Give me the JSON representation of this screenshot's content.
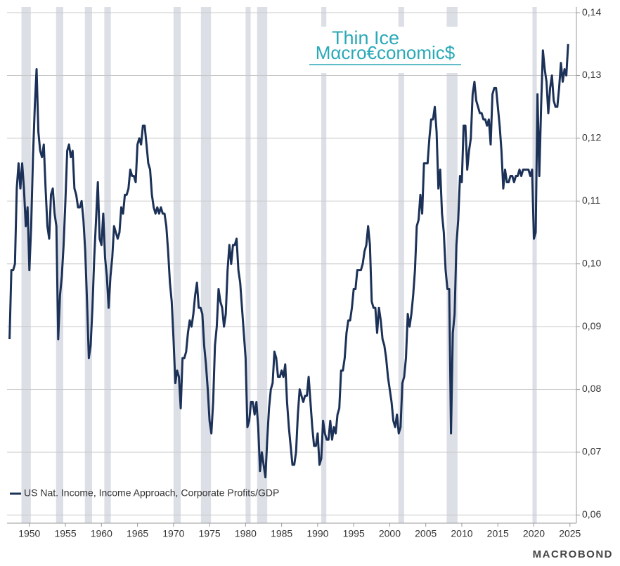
{
  "chart_data": {
    "type": "line",
    "logo": [
      "Thin Ice",
      "Mαcro€conomic$"
    ],
    "source": "MACROBOND",
    "grid": true,
    "legend": "bottom-left",
    "xlim": [
      1946.9,
      2025.9
    ],
    "xticks": [
      1950,
      1955,
      1960,
      1965,
      1970,
      1975,
      1980,
      1985,
      1990,
      1995,
      2000,
      2005,
      2010,
      2015,
      2020,
      2025
    ],
    "ylim": [
      0.0587,
      0.1409
    ],
    "yticks": [
      {
        "value": 0.06,
        "label": "0,06"
      },
      {
        "value": 0.07,
        "label": "0,07"
      },
      {
        "value": 0.08,
        "label": "0,08"
      },
      {
        "value": 0.09,
        "label": "0,09"
      },
      {
        "value": 0.1,
        "label": "0,10"
      },
      {
        "value": 0.11,
        "label": "0,11"
      },
      {
        "value": 0.12,
        "label": "0,12"
      },
      {
        "value": 0.13,
        "label": "0,13"
      },
      {
        "value": 0.14,
        "label": "0,14"
      }
    ],
    "recession_color": "#dcdfe6",
    "recessions": [
      [
        1948.9,
        1950.2
      ],
      [
        1953.7,
        1954.7
      ],
      [
        1957.7,
        1958.7
      ],
      [
        1960.4,
        1961.3
      ],
      [
        1970.0,
        1971.0
      ],
      [
        1973.8,
        1975.2
      ],
      [
        1980.0,
        1980.7
      ],
      [
        1981.6,
        1983.0
      ],
      [
        1990.5,
        1991.2
      ],
      [
        2001.2,
        2002.0
      ],
      [
        2007.9,
        2009.4
      ],
      [
        2019.8,
        2020.4
      ]
    ],
    "x": [
      1947.25,
      1947.5,
      1947.75,
      1948,
      1948.25,
      1948.5,
      1948.75,
      1949,
      1949.25,
      1949.5,
      1949.75,
      1950,
      1950.25,
      1950.5,
      1950.75,
      1951,
      1951.25,
      1951.5,
      1951.75,
      1952,
      1952.25,
      1952.5,
      1952.75,
      1953,
      1953.25,
      1953.5,
      1953.75,
      1954,
      1954.25,
      1954.5,
      1954.75,
      1955,
      1955.25,
      1955.5,
      1955.75,
      1956,
      1956.25,
      1956.5,
      1956.75,
      1957,
      1957.25,
      1957.5,
      1957.75,
      1958,
      1958.25,
      1958.5,
      1958.75,
      1959,
      1959.25,
      1959.5,
      1959.75,
      1960,
      1960.25,
      1960.5,
      1960.75,
      1961,
      1961.25,
      1961.5,
      1961.75,
      1962,
      1962.25,
      1962.5,
      1962.75,
      1963,
      1963.25,
      1963.5,
      1963.75,
      1964,
      1964.25,
      1964.5,
      1964.75,
      1965,
      1965.25,
      1965.5,
      1965.75,
      1966,
      1966.25,
      1966.5,
      1966.75,
      1967,
      1967.25,
      1967.5,
      1967.75,
      1968,
      1968.25,
      1968.5,
      1968.75,
      1969,
      1969.25,
      1969.5,
      1969.75,
      1970,
      1970.25,
      1970.5,
      1970.75,
      1971,
      1971.25,
      1971.5,
      1971.75,
      1972,
      1972.25,
      1972.5,
      1972.75,
      1973,
      1973.25,
      1973.5,
      1973.75,
      1974,
      1974.25,
      1974.5,
      1974.75,
      1975,
      1975.25,
      1975.5,
      1975.75,
      1976,
      1976.25,
      1976.5,
      1976.75,
      1977,
      1977.25,
      1977.5,
      1977.75,
      1978,
      1978.25,
      1978.5,
      1978.75,
      1979,
      1979.25,
      1979.5,
      1979.75,
      1980,
      1980.25,
      1980.5,
      1980.75,
      1981,
      1981.25,
      1981.5,
      1981.75,
      1982,
      1982.25,
      1982.5,
      1982.75,
      1983,
      1983.25,
      1983.5,
      1983.75,
      1984,
      1984.25,
      1984.5,
      1984.75,
      1985,
      1985.25,
      1985.5,
      1985.75,
      1986,
      1986.25,
      1986.5,
      1986.75,
      1987,
      1987.25,
      1987.5,
      1987.75,
      1988,
      1988.25,
      1988.5,
      1988.75,
      1989,
      1989.25,
      1989.5,
      1989.75,
      1990,
      1990.25,
      1990.5,
      1990.75,
      1991,
      1991.25,
      1991.5,
      1991.75,
      1992,
      1992.25,
      1992.5,
      1992.75,
      1993,
      1993.25,
      1993.5,
      1993.75,
      1994,
      1994.25,
      1994.5,
      1994.75,
      1995,
      1995.25,
      1995.5,
      1995.75,
      1996,
      1996.25,
      1996.5,
      1996.75,
      1997,
      1997.25,
      1997.5,
      1997.75,
      1998,
      1998.25,
      1998.5,
      1998.75,
      1999,
      1999.25,
      1999.5,
      1999.75,
      2000,
      2000.25,
      2000.5,
      2000.75,
      2001,
      2001.25,
      2001.5,
      2001.75,
      2002,
      2002.25,
      2002.5,
      2002.75,
      2003,
      2003.25,
      2003.5,
      2003.75,
      2004,
      2004.25,
      2004.5,
      2004.75,
      2005,
      2005.25,
      2005.5,
      2005.75,
      2006,
      2006.25,
      2006.5,
      2006.75,
      2007,
      2007.25,
      2007.5,
      2007.75,
      2008,
      2008.25,
      2008.5,
      2008.75,
      2009,
      2009.25,
      2009.5,
      2009.75,
      2010,
      2010.25,
      2010.5,
      2010.75,
      2011,
      2011.25,
      2011.5,
      2011.75,
      2012,
      2012.25,
      2012.5,
      2012.75,
      2013,
      2013.25,
      2013.5,
      2013.75,
      2014,
      2014.25,
      2014.5,
      2014.75,
      2015,
      2015.25,
      2015.5,
      2015.75,
      2016,
      2016.25,
      2016.5,
      2016.75,
      2017,
      2017.25,
      2017.5,
      2017.75,
      2018,
      2018.25,
      2018.5,
      2018.75,
      2019,
      2019.25,
      2019.5,
      2019.75,
      2020,
      2020.25,
      2020.5,
      2020.75,
      2021,
      2021.25,
      2021.5,
      2021.75,
      2022,
      2022.25,
      2022.5,
      2022.75,
      2023,
      2023.25,
      2023.5,
      2023.75,
      2024,
      2024.25,
      2024.5,
      2024.75
    ],
    "series": [
      {
        "name": "US Nat. Income, Income Approach, Corporate Profits/GDP",
        "color": "#1c3157",
        "values": [
          0.088,
          0.099,
          0.099,
          0.1,
          0.112,
          0.116,
          0.112,
          0.116,
          0.112,
          0.106,
          0.109,
          0.099,
          0.106,
          0.117,
          0.125,
          0.131,
          0.121,
          0.118,
          0.117,
          0.119,
          0.112,
          0.106,
          0.104,
          0.111,
          0.112,
          0.108,
          0.106,
          0.088,
          0.095,
          0.098,
          0.103,
          0.11,
          0.118,
          0.119,
          0.117,
          0.118,
          0.112,
          0.111,
          0.109,
          0.109,
          0.11,
          0.107,
          0.102,
          0.094,
          0.085,
          0.087,
          0.093,
          0.101,
          0.107,
          0.113,
          0.104,
          0.103,
          0.108,
          0.101,
          0.098,
          0.093,
          0.098,
          0.101,
          0.106,
          0.105,
          0.104,
          0.105,
          0.109,
          0.108,
          0.111,
          0.111,
          0.112,
          0.115,
          0.114,
          0.114,
          0.113,
          0.119,
          0.12,
          0.119,
          0.122,
          0.122,
          0.119,
          0.116,
          0.115,
          0.111,
          0.109,
          0.108,
          0.109,
          0.108,
          0.109,
          0.108,
          0.108,
          0.106,
          0.102,
          0.097,
          0.094,
          0.088,
          0.081,
          0.083,
          0.082,
          0.077,
          0.085,
          0.085,
          0.086,
          0.089,
          0.091,
          0.09,
          0.092,
          0.095,
          0.097,
          0.093,
          0.093,
          0.092,
          0.087,
          0.084,
          0.08,
          0.075,
          0.073,
          0.078,
          0.087,
          0.09,
          0.096,
          0.094,
          0.093,
          0.09,
          0.092,
          0.099,
          0.103,
          0.1,
          0.103,
          0.103,
          0.104,
          0.099,
          0.097,
          0.093,
          0.089,
          0.085,
          0.074,
          0.075,
          0.078,
          0.078,
          0.076,
          0.078,
          0.074,
          0.067,
          0.07,
          0.068,
          0.066,
          0.072,
          0.077,
          0.08,
          0.081,
          0.086,
          0.085,
          0.082,
          0.082,
          0.083,
          0.082,
          0.084,
          0.078,
          0.074,
          0.071,
          0.068,
          0.068,
          0.07,
          0.076,
          0.08,
          0.079,
          0.078,
          0.079,
          0.079,
          0.082,
          0.078,
          0.074,
          0.071,
          0.071,
          0.073,
          0.068,
          0.069,
          0.075,
          0.073,
          0.072,
          0.072,
          0.075,
          0.072,
          0.074,
          0.073,
          0.076,
          0.077,
          0.083,
          0.083,
          0.085,
          0.089,
          0.091,
          0.091,
          0.093,
          0.096,
          0.096,
          0.099,
          0.099,
          0.099,
          0.1,
          0.102,
          0.103,
          0.106,
          0.103,
          0.094,
          0.093,
          0.093,
          0.089,
          0.093,
          0.091,
          0.088,
          0.087,
          0.085,
          0.082,
          0.08,
          0.078,
          0.075,
          0.074,
          0.076,
          0.073,
          0.074,
          0.081,
          0.082,
          0.085,
          0.092,
          0.09,
          0.092,
          0.095,
          0.099,
          0.106,
          0.107,
          0.111,
          0.108,
          0.116,
          0.116,
          0.116,
          0.12,
          0.123,
          0.123,
          0.125,
          0.121,
          0.112,
          0.115,
          0.108,
          0.105,
          0.099,
          0.096,
          0.096,
          0.073,
          0.089,
          0.092,
          0.103,
          0.107,
          0.114,
          0.113,
          0.122,
          0.122,
          0.115,
          0.118,
          0.12,
          0.127,
          0.129,
          0.126,
          0.125,
          0.124,
          0.124,
          0.123,
          0.123,
          0.122,
          0.123,
          0.119,
          0.127,
          0.128,
          0.128,
          0.125,
          0.122,
          0.118,
          0.112,
          0.115,
          0.113,
          0.113,
          0.114,
          0.114,
          0.113,
          0.114,
          0.114,
          0.115,
          0.114,
          0.115,
          0.115,
          0.115,
          0.115,
          0.114,
          0.115,
          0.104,
          0.105,
          0.127,
          0.114,
          0.125,
          0.134,
          0.131,
          0.129,
          0.124,
          0.128,
          0.13,
          0.126,
          0.125,
          0.125,
          0.128,
          0.132,
          0.129,
          0.131,
          0.13,
          0.135
        ]
      }
    ]
  }
}
